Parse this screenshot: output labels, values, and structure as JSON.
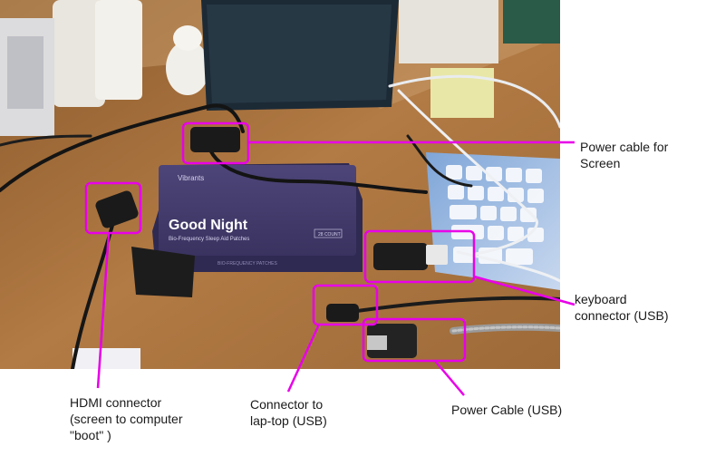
{
  "photo": {
    "box_brand": "Vibrants",
    "box_title": "Good Night",
    "box_subtitle": "Bio-Frequency Sleep Aid Patches",
    "box_count": "28 COUNT",
    "box_side_text": "BIO-FREQUENCY PATCHES"
  },
  "annotations": {
    "accent_color": "#e800e8",
    "labels": [
      {
        "id": "power-screen",
        "text": "Power cable for\nScreen"
      },
      {
        "id": "keyboard",
        "text": "keyboard\nconnector (USB)"
      },
      {
        "id": "hdmi",
        "text": "HDMI connector\n(screen to computer\n\"boot\" )"
      },
      {
        "id": "laptop",
        "text": "Connector to\nlap-top (USB)"
      },
      {
        "id": "power-usb",
        "text": "Power Cable (USB)"
      }
    ]
  }
}
